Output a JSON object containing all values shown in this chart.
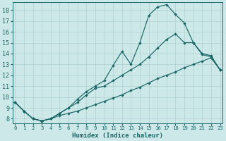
{
  "bg_color": "#cce8e8",
  "grid_color": "#b0d0d0",
  "line_color": "#1a6666",
  "xlabel": "Humidex (Indice chaleur)",
  "x_ticks": [
    0,
    1,
    2,
    3,
    4,
    5,
    6,
    7,
    8,
    9,
    10,
    11,
    12,
    13,
    14,
    15,
    16,
    17,
    18,
    19,
    20,
    21,
    22,
    23
  ],
  "y_ticks": [
    8,
    9,
    10,
    11,
    12,
    13,
    14,
    15,
    16,
    17,
    18
  ],
  "ylim": [
    7.6,
    18.7
  ],
  "xlim": [
    -0.3,
    23.3
  ],
  "curve1_x": [
    0,
    1,
    2,
    3,
    4,
    5,
    6,
    7,
    8,
    9,
    10,
    11,
    12,
    13,
    14,
    15,
    16,
    17,
    18,
    19,
    20,
    21,
    22,
    23
  ],
  "curve1_y": [
    9.5,
    8.7,
    8.0,
    7.8,
    8.0,
    8.3,
    8.5,
    8.7,
    9.0,
    9.3,
    9.6,
    9.9,
    10.2,
    10.6,
    10.9,
    11.3,
    11.7,
    12.0,
    12.3,
    12.7,
    13.0,
    13.3,
    13.6,
    12.5
  ],
  "curve2_x": [
    0,
    1,
    2,
    3,
    4,
    5,
    6,
    7,
    8,
    9,
    10,
    11,
    12,
    13,
    14,
    15,
    16,
    17,
    18,
    19,
    20,
    21,
    22,
    23
  ],
  "curve2_y": [
    9.5,
    8.7,
    8.0,
    7.8,
    8.0,
    8.5,
    9.0,
    9.5,
    10.2,
    10.8,
    11.0,
    11.5,
    12.0,
    12.5,
    13.0,
    13.7,
    14.5,
    15.3,
    15.8,
    15.0,
    15.0,
    14.0,
    13.8,
    12.5
  ],
  "curve3_x": [
    0,
    1,
    2,
    3,
    4,
    5,
    6,
    7,
    8,
    9,
    10,
    11,
    12,
    13,
    14,
    15,
    16,
    17,
    18,
    19,
    20,
    21,
    22,
    23
  ],
  "curve3_y": [
    9.5,
    8.7,
    8.0,
    7.8,
    8.0,
    8.5,
    9.0,
    9.8,
    10.5,
    11.0,
    11.5,
    12.9,
    14.2,
    13.0,
    15.0,
    17.5,
    18.3,
    18.5,
    17.6,
    16.8,
    15.0,
    13.9,
    13.7,
    12.5
  ]
}
